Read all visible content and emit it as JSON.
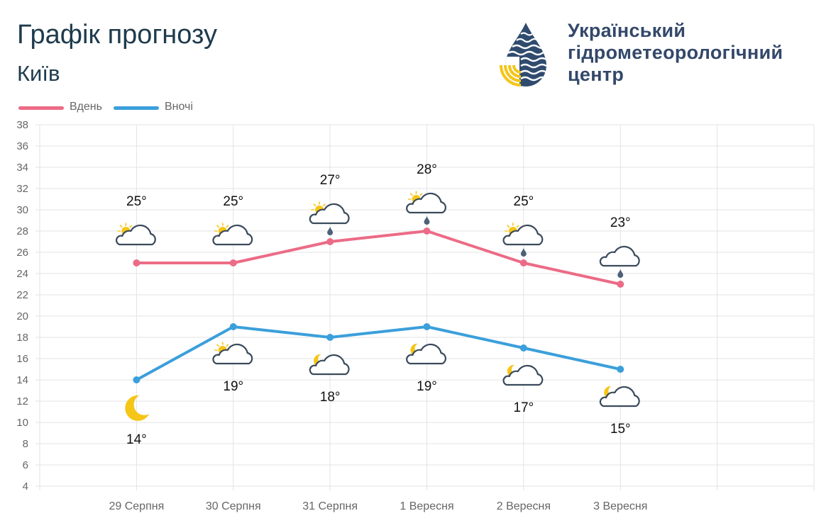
{
  "header": {
    "title": "Графік прогнозу",
    "city": "Київ"
  },
  "organization": {
    "line1": "Український",
    "line2": "гідрометеорологічний",
    "line3": "центр"
  },
  "colors": {
    "day": "#ec6b86",
    "night": "#3b9fdb",
    "title": "#1f3b4d",
    "org": "#33486a",
    "grid": "#e3e3e3",
    "axis_text": "#666666",
    "sun": "#f5c518",
    "cloud": "#3a4a5c"
  },
  "chart_data": {
    "type": "line",
    "title": "Графік прогнозу",
    "subtitle": "Київ",
    "categories": [
      "29 Серпня",
      "30 Серпня",
      "31 Серпня",
      "1 Вересня",
      "2 Вересня",
      "3 Вересня"
    ],
    "series": [
      {
        "name": "Вдень",
        "color": "#ec6b86",
        "values": [
          25,
          25,
          27,
          28,
          25,
          23
        ],
        "labels": [
          "25°",
          "25°",
          "27°",
          "28°",
          "25°",
          "23°"
        ],
        "icons": [
          "sun-cloud-icon",
          "sun-cloud-icon",
          "sun-cloud-rain-icon",
          "sun-cloud-rain-icon",
          "sun-cloud-rain-icon",
          "cloud-rain-icon"
        ]
      },
      {
        "name": "Вночі",
        "color": "#3b9fdb",
        "values": [
          14,
          19,
          18,
          19,
          17,
          15
        ],
        "labels": [
          "14°",
          "19°",
          "18°",
          "19°",
          "17°",
          "15°"
        ],
        "icons": [
          "moon-icon",
          "sun-cloud-icon",
          "moon-cloud-icon",
          "moon-cloud-icon",
          "moon-cloud-icon",
          "moon-cloud-icon"
        ]
      }
    ],
    "ylim": [
      4,
      38
    ],
    "yticks": [
      4,
      6,
      8,
      10,
      12,
      14,
      16,
      18,
      20,
      22,
      24,
      26,
      28,
      30,
      32,
      34,
      36,
      38
    ],
    "grid": true,
    "legend": "top-left"
  }
}
